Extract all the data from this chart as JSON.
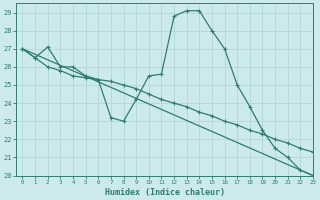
{
  "xlabel": "Humidex (Indice chaleur)",
  "bg_color": "#cceaea",
  "grid_color": "#b0d8d8",
  "line_color": "#2e7d6e",
  "xlim": [
    -0.5,
    23
  ],
  "ylim": [
    20,
    29.5
  ],
  "yticks": [
    20,
    21,
    22,
    23,
    24,
    25,
    26,
    27,
    28,
    29
  ],
  "xticks": [
    0,
    1,
    2,
    3,
    4,
    5,
    6,
    7,
    8,
    9,
    10,
    11,
    12,
    13,
    14,
    15,
    16,
    17,
    18,
    19,
    20,
    21,
    22,
    23
  ],
  "line1_x": [
    0,
    1,
    2,
    3,
    4,
    5,
    6,
    7,
    8,
    9,
    10,
    11,
    12,
    13,
    14,
    15,
    16,
    17,
    18,
    19,
    20,
    21,
    22,
    23
  ],
  "line1_y": [
    27.0,
    26.5,
    27.1,
    26.0,
    26.0,
    25.5,
    25.3,
    23.2,
    23.0,
    24.2,
    25.5,
    25.6,
    28.8,
    29.1,
    29.1,
    28.0,
    27.0,
    25.0,
    23.8,
    22.5,
    21.5,
    21.0,
    20.3,
    20.0
  ],
  "line2_x": [
    0,
    1,
    2,
    3,
    4,
    5,
    6,
    7,
    8,
    9,
    10,
    11,
    12,
    13,
    14,
    15,
    16,
    17,
    18,
    19,
    20,
    21,
    22,
    23
  ],
  "line2_y": [
    27.0,
    26.5,
    26.0,
    25.8,
    25.5,
    25.4,
    25.3,
    25.2,
    25.0,
    24.8,
    24.5,
    24.2,
    24.0,
    23.8,
    23.5,
    23.3,
    23.0,
    22.8,
    22.5,
    22.3,
    22.0,
    21.8,
    21.5,
    21.3
  ],
  "line3_x": [
    0,
    23
  ],
  "line3_y": [
    27.0,
    20.0
  ]
}
